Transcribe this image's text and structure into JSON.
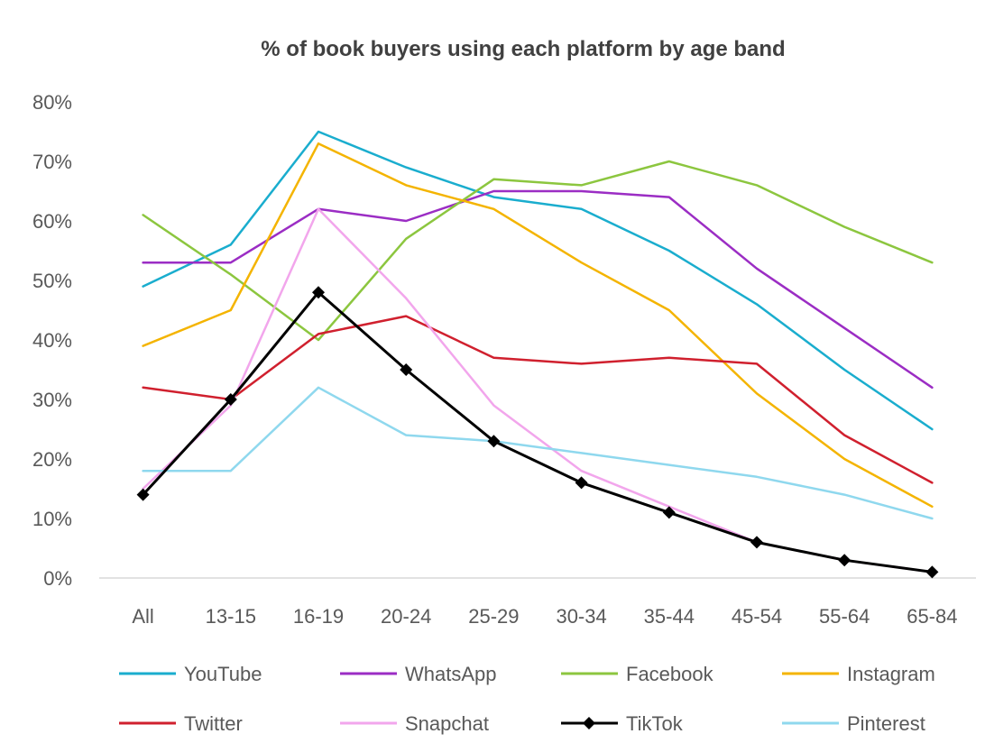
{
  "chart_data": {
    "type": "line",
    "title": "% of book buyers using each platform by age band",
    "xlabel": "",
    "ylabel": "",
    "categories": [
      "All",
      "13-15",
      "16-19",
      "20-24",
      "25-29",
      "30-34",
      "35-44",
      "45-54",
      "55-64",
      "65-84"
    ],
    "ylim": [
      0,
      80
    ],
    "yticks": [
      "0%",
      "10%",
      "20%",
      "30%",
      "40%",
      "50%",
      "60%",
      "70%",
      "80%"
    ],
    "grid": "baseline only",
    "legend_position": "bottom",
    "series": [
      {
        "name": "YouTube",
        "color": "#1AADCE",
        "values": [
          49,
          56,
          75,
          69,
          64,
          62,
          55,
          46,
          35,
          25
        ],
        "marker": "none"
      },
      {
        "name": "WhatsApp",
        "color": "#9B2DC4",
        "values": [
          53,
          53,
          62,
          60,
          65,
          65,
          64,
          52,
          42,
          32
        ],
        "marker": "none"
      },
      {
        "name": "Facebook",
        "color": "#8CC63F",
        "values": [
          61,
          51,
          40,
          57,
          67,
          66,
          70,
          66,
          59,
          53
        ],
        "marker": "none"
      },
      {
        "name": "Instagram",
        "color": "#F4B400",
        "values": [
          39,
          45,
          73,
          66,
          62,
          53,
          45,
          31,
          20,
          12
        ],
        "marker": "none"
      },
      {
        "name": "Twitter",
        "color": "#D0202E",
        "values": [
          32,
          30,
          41,
          44,
          37,
          36,
          37,
          36,
          24,
          16
        ],
        "marker": "none"
      },
      {
        "name": "Snapchat",
        "color": "#F2A6EC",
        "values": [
          15,
          29,
          62,
          47,
          29,
          18,
          12,
          6,
          3,
          1
        ],
        "marker": "none"
      },
      {
        "name": "TikTok",
        "color": "#000000",
        "values": [
          14,
          30,
          48,
          35,
          23,
          16,
          11,
          6,
          3,
          1
        ],
        "marker": "diamond"
      },
      {
        "name": "Pinterest",
        "color": "#8FD8EE",
        "values": [
          18,
          18,
          32,
          24,
          23,
          21,
          19,
          17,
          14,
          10
        ],
        "marker": "none"
      }
    ]
  }
}
